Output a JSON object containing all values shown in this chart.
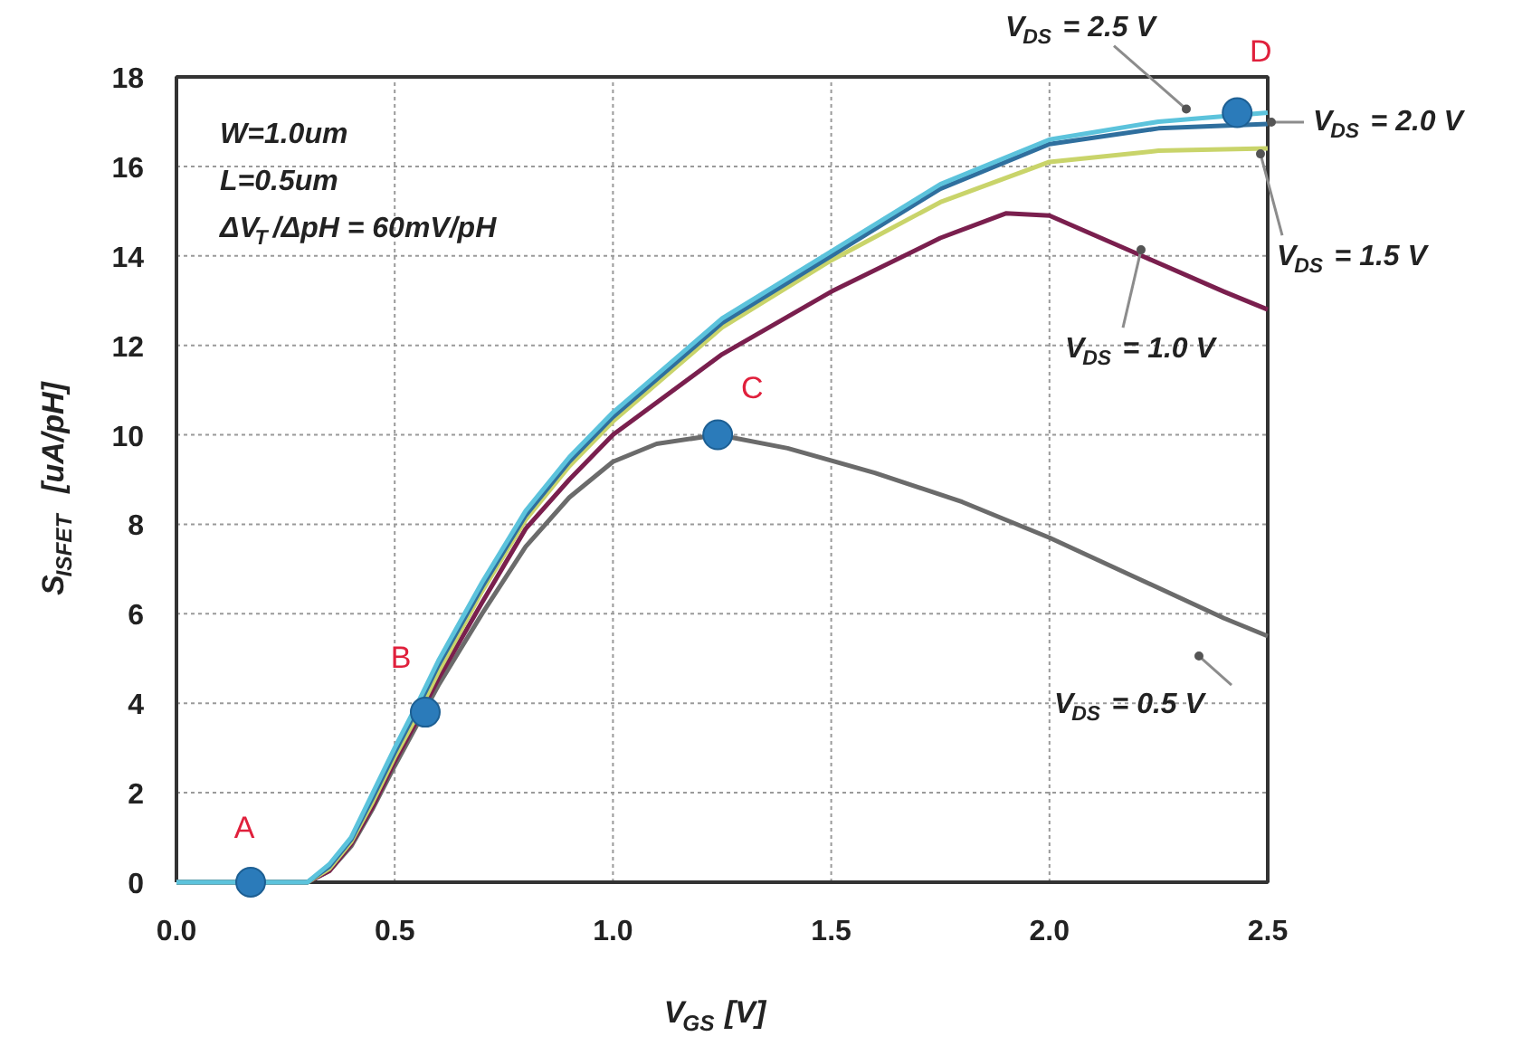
{
  "chart_data": {
    "type": "line",
    "xlabel": "V$_{GS}$ [V]",
    "ylabel": "S$_{ISFET}$ [uA/pH]",
    "xlim": [
      0,
      2.5
    ],
    "xticks": [
      {
        "value": 0,
        "label": "0.0"
      },
      {
        "value": 0.5,
        "label": "0.5"
      },
      {
        "value": 1,
        "label": "1.0"
      },
      {
        "value": 1.5,
        "label": "1.5"
      },
      {
        "value": 2,
        "label": "2.0"
      },
      {
        "value": 2.5,
        "label": "2.5"
      }
    ],
    "ylim": [
      0,
      18
    ],
    "yticks": [
      0,
      2,
      4,
      6,
      8,
      10,
      12,
      14,
      16,
      18
    ],
    "grid": true,
    "legend": false,
    "series": [
      {
        "name": "V$_{DS}$ = 0.5 V",
        "color": "#6b6b6b",
        "x": [
          0,
          0.3,
          0.35,
          0.4,
          0.45,
          0.5,
          0.55,
          0.6,
          0.7,
          0.8,
          0.9,
          1.0,
          1.1,
          1.24,
          1.4,
          1.6,
          1.8,
          2.0,
          2.2,
          2.4,
          2.5
        ],
        "values": [
          0,
          0,
          0.25,
          0.8,
          1.65,
          2.6,
          3.5,
          4.4,
          6.0,
          7.5,
          8.6,
          9.4,
          9.8,
          10.0,
          9.7,
          9.15,
          8.5,
          7.7,
          6.8,
          5.9,
          5.5
        ]
      },
      {
        "name": "V$_{DS}$ = 1.0 V",
        "color": "#7a1f4e",
        "x": [
          0,
          0.3,
          0.35,
          0.4,
          0.45,
          0.5,
          0.55,
          0.6,
          0.7,
          0.8,
          0.9,
          1.0,
          1.25,
          1.5,
          1.75,
          1.9,
          2.0,
          2.2,
          2.4,
          2.5
        ],
        "values": [
          0,
          0,
          0.25,
          0.85,
          1.7,
          2.7,
          3.6,
          4.55,
          6.25,
          7.9,
          9.0,
          10.0,
          11.8,
          13.2,
          14.4,
          14.95,
          14.9,
          14.05,
          13.2,
          12.8
        ]
      },
      {
        "name": "V$_{DS}$ = 1.5 V",
        "color": "#c9d46a",
        "x": [
          0,
          0.3,
          0.35,
          0.4,
          0.45,
          0.5,
          0.55,
          0.6,
          0.7,
          0.8,
          0.9,
          1.0,
          1.25,
          1.5,
          1.75,
          2.0,
          2.25,
          2.5
        ],
        "values": [
          0,
          0,
          0.3,
          0.9,
          1.8,
          2.8,
          3.7,
          4.7,
          6.5,
          8.1,
          9.3,
          10.3,
          12.4,
          13.9,
          15.2,
          16.1,
          16.35,
          16.4
        ]
      },
      {
        "name": "V$_{DS}$ = 2.0 V",
        "color": "#2f6f9e",
        "x": [
          0,
          0.3,
          0.35,
          0.4,
          0.45,
          0.5,
          0.55,
          0.6,
          0.7,
          0.8,
          0.9,
          1.0,
          1.25,
          1.5,
          1.75,
          2.0,
          2.25,
          2.5
        ],
        "values": [
          0,
          0,
          0.35,
          0.95,
          1.9,
          2.9,
          3.85,
          4.85,
          6.6,
          8.2,
          9.4,
          10.4,
          12.5,
          14.0,
          15.5,
          16.5,
          16.85,
          16.95
        ]
      },
      {
        "name": "V$_{DS}$ = 2.5 V",
        "color": "#5cc3dc",
        "x": [
          0,
          0.3,
          0.35,
          0.4,
          0.45,
          0.5,
          0.55,
          0.6,
          0.7,
          0.8,
          0.9,
          1.0,
          1.25,
          1.5,
          1.75,
          2.0,
          2.25,
          2.5
        ],
        "values": [
          0,
          0,
          0.4,
          1.0,
          2.0,
          3.0,
          3.95,
          4.95,
          6.7,
          8.3,
          9.5,
          10.5,
          12.6,
          14.1,
          15.6,
          16.6,
          17.0,
          17.2
        ]
      },
      {
        "type": "scatter",
        "marker": "circle",
        "color": "#2b7bba",
        "x": [
          0.17,
          0.57,
          1.24,
          2.43
        ],
        "values": [
          0,
          3.8,
          10,
          17.2
        ]
      }
    ],
    "annotations": [
      "W=1.0um",
      "L=0.5um",
      "ΔV$_{T}$/ΔpH = 60mV/pH",
      {
        "text": "A",
        "x": 0.17,
        "y": 0
      },
      {
        "text": "B",
        "x": 0.57,
        "y": 3.8
      },
      {
        "text": "C",
        "x": 1.24,
        "y": 10
      },
      {
        "text": "D",
        "x": 2.43,
        "y": 17.2
      }
    ]
  }
}
